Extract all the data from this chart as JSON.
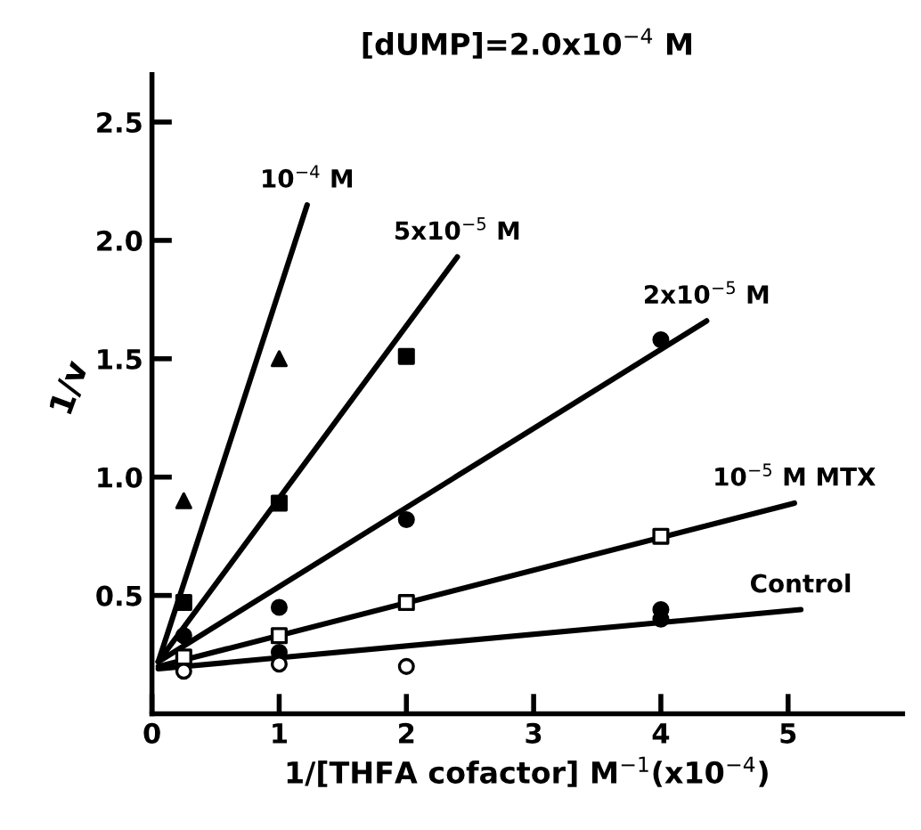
{
  "chart_data": {
    "type": "scatter",
    "title": "[dUMP]=2.0x10$^{−4}$ M",
    "xlabel": "1/[THFA cofactor] M$^{−1}$(x10$^{−4}$)",
    "ylabel": "1/v",
    "xlim": [
      0,
      5.9
    ],
    "ylim": [
      0,
      2.7
    ],
    "xticks": [
      0,
      1,
      2,
      3,
      4,
      5
    ],
    "yticks": [
      {
        "value": 0.5,
        "label": "0.5"
      },
      {
        "value": 1.0,
        "label": "1.0"
      },
      {
        "value": 1.5,
        "label": "1.5"
      },
      {
        "value": 2.0,
        "label": "2.0"
      },
      {
        "value": 2.5,
        "label": "2.5"
      }
    ],
    "grid": false,
    "legend": false,
    "series": [
      {
        "marker": "triangle",
        "color": "#000000",
        "x": [
          0.25,
          1
        ],
        "values": [
          0.9,
          1.5
        ]
      },
      {
        "marker": "square",
        "color": "#000000",
        "x": [
          0.25,
          1,
          2
        ],
        "values": [
          0.47,
          0.89,
          1.51
        ]
      },
      {
        "marker": "circle",
        "color": "#000000",
        "x": [
          0.25,
          1,
          2,
          4
        ],
        "values": [
          0.33,
          0.45,
          0.82,
          1.58
        ]
      },
      {
        "marker": "square",
        "color": "#ffffff",
        "x": [
          0.25,
          1,
          2,
          4
        ],
        "values": [
          0.24,
          0.33,
          0.47,
          0.75
        ]
      },
      {
        "marker": "circle",
        "color": "#ffffff",
        "x": [
          0.25,
          1,
          2
        ],
        "values": [
          0.18,
          0.21,
          0.2
        ]
      },
      {
        "marker": "circle",
        "color": "#000000",
        "x": [
          1,
          4,
          4
        ],
        "values": [
          0.26,
          0.44,
          0.4
        ]
      },
      {
        "type": "line",
        "marker": "none",
        "color": "#000000",
        "x": [
          0.05,
          1.22
        ],
        "values": [
          0.22,
          2.15
        ]
      },
      {
        "type": "line",
        "marker": "none",
        "color": "#000000",
        "x": [
          0.05,
          2.4
        ],
        "values": [
          0.22,
          1.93
        ]
      },
      {
        "type": "line",
        "marker": "none",
        "color": "#000000",
        "x": [
          0.05,
          4.36
        ],
        "values": [
          0.22,
          1.66
        ]
      },
      {
        "type": "line",
        "marker": "none",
        "color": "#000000",
        "x": [
          0.05,
          5.05
        ],
        "values": [
          0.2,
          0.89
        ]
      },
      {
        "type": "line",
        "marker": "none",
        "color": "#000000",
        "x": [
          0.05,
          5.1
        ],
        "values": [
          0.19,
          0.44
        ]
      }
    ],
    "annotations": [
      {
        "text": "10$^{−4}$ M",
        "x": 1.22,
        "y": 2.15
      },
      {
        "text": "5x10$^{−5}$ M",
        "x": 2.4,
        "y": 1.93
      },
      {
        "text": "2x10$^{−5}$ M",
        "x": 4.36,
        "y": 1.66
      },
      {
        "text": "10$^{−5}$ M MTX",
        "x": 5.05,
        "y": 0.89
      },
      {
        "text": "Control",
        "x": 5.1,
        "y": 0.44
      }
    ]
  }
}
